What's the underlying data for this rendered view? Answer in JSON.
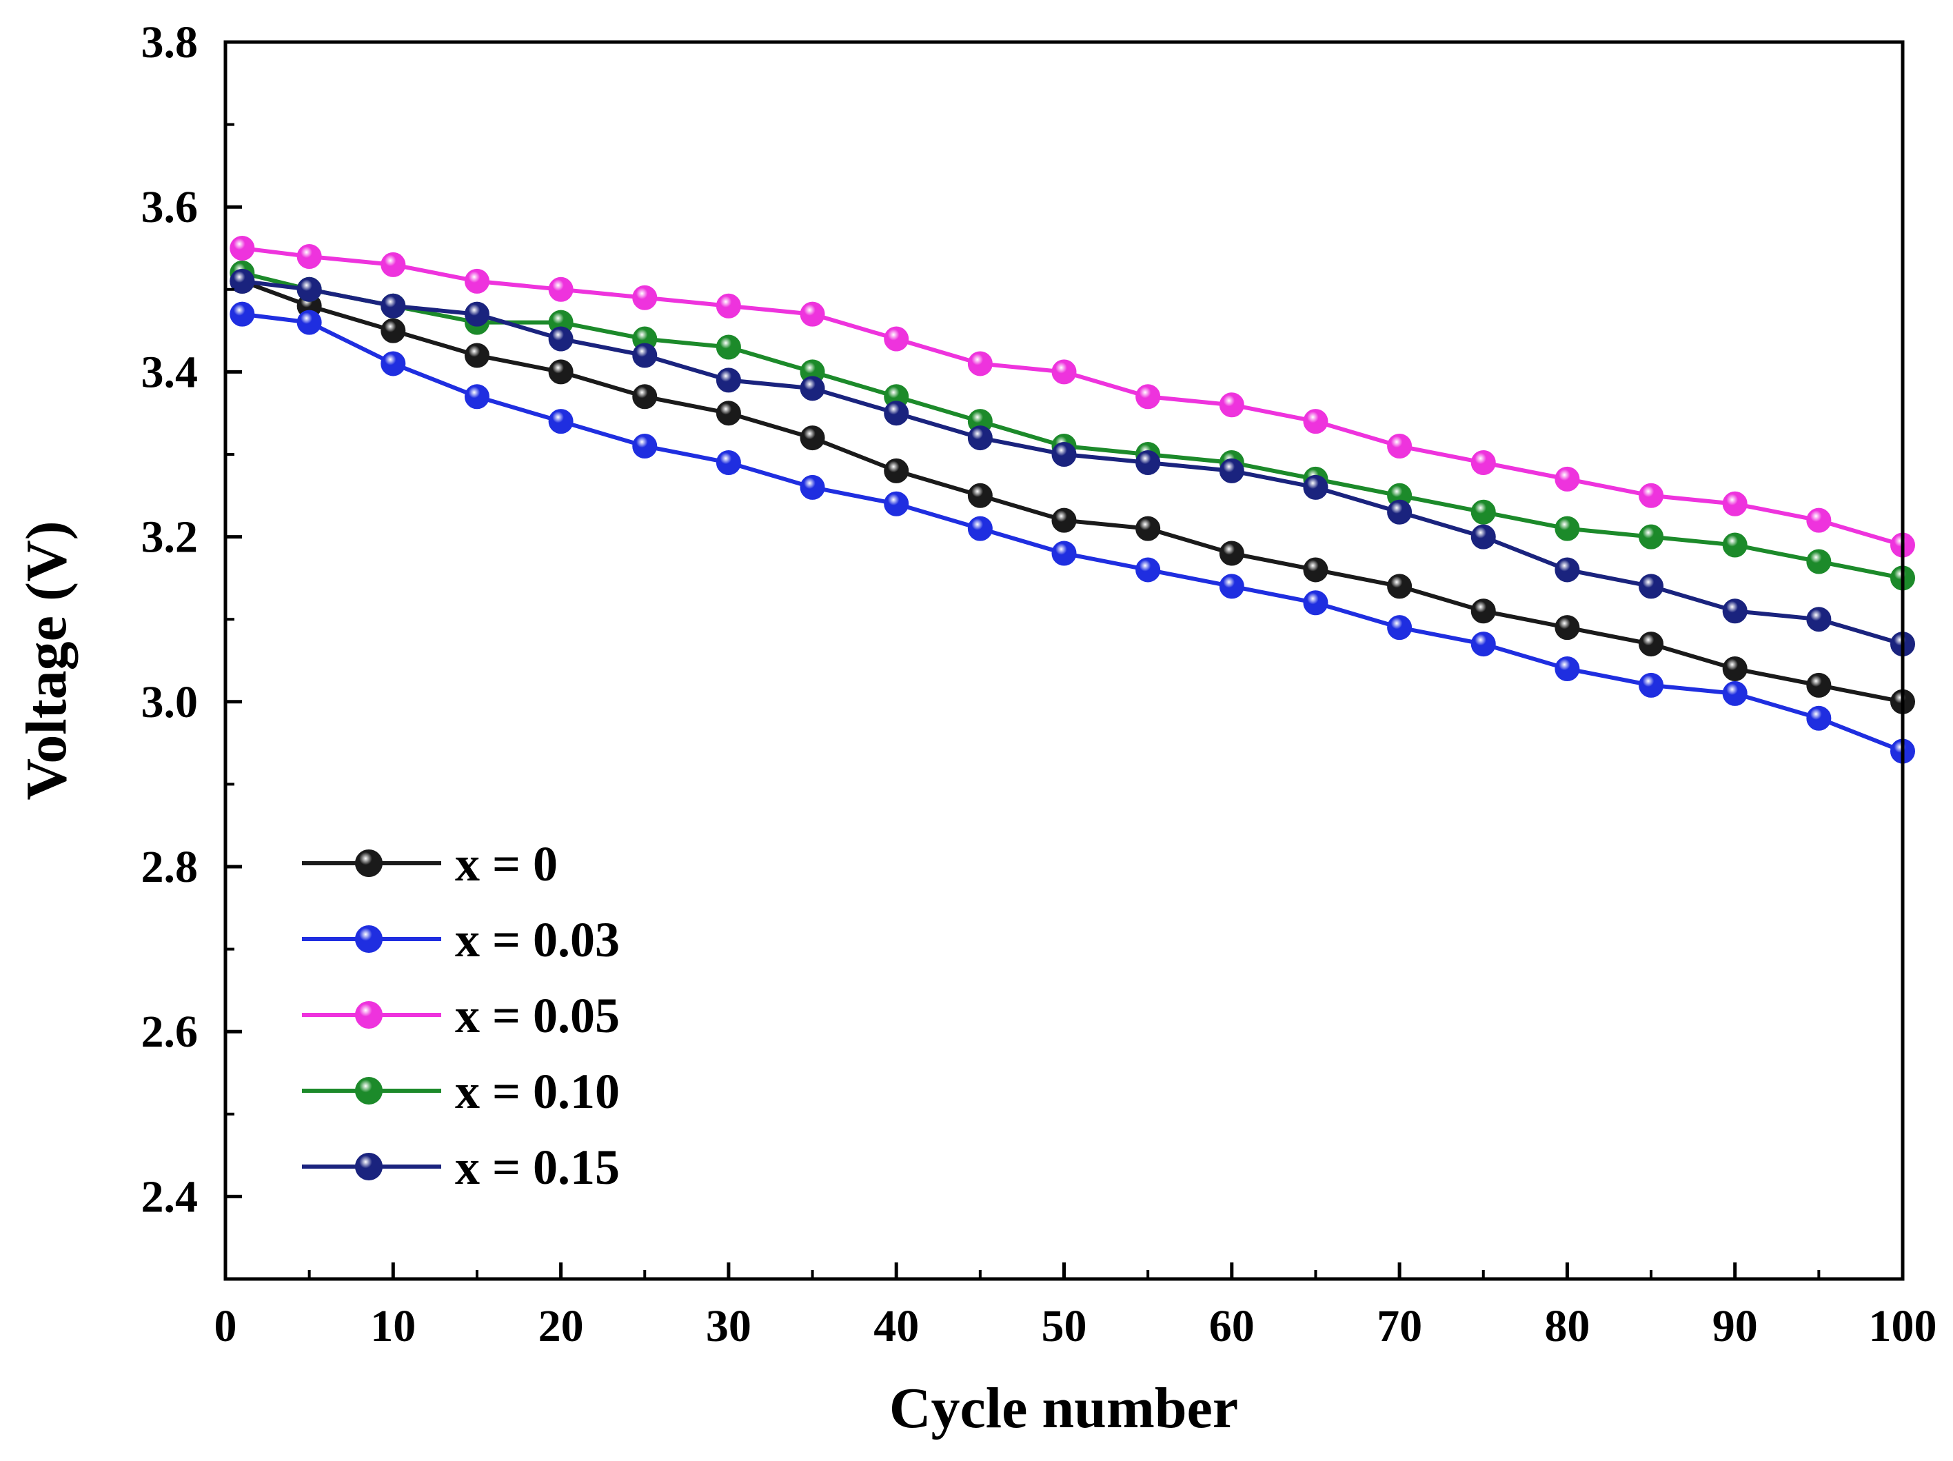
{
  "chart_data": {
    "type": "line",
    "title": "",
    "xlabel": "Cycle number",
    "ylabel": "Voltage (V)",
    "xlim": [
      0,
      100
    ],
    "ylim": [
      2.3,
      3.8
    ],
    "xticks": [
      0,
      10,
      20,
      30,
      40,
      50,
      60,
      70,
      80,
      90,
      100
    ],
    "xtick_labels": [
      "0",
      "10",
      "20",
      "30",
      "40",
      "50",
      "60",
      "70",
      "80",
      "90",
      "100"
    ],
    "yticks": [
      2.4,
      2.6,
      2.8,
      3.0,
      3.2,
      3.4,
      3.6,
      3.8
    ],
    "ytick_labels": [
      "2.4",
      "2.6",
      "2.8",
      "3.0",
      "3.2",
      "3.4",
      "3.6",
      "3.8"
    ],
    "grid": false,
    "legend_position": "bottom-left",
    "x": [
      1,
      5,
      10,
      15,
      20,
      25,
      30,
      35,
      40,
      45,
      50,
      55,
      60,
      65,
      70,
      75,
      80,
      85,
      90,
      95,
      100
    ],
    "series": [
      {
        "name": "x = 0",
        "color": "#1a1a1a",
        "values": [
          3.51,
          3.48,
          3.45,
          3.42,
          3.4,
          3.37,
          3.35,
          3.32,
          3.28,
          3.25,
          3.22,
          3.21,
          3.18,
          3.16,
          3.14,
          3.11,
          3.09,
          3.07,
          3.04,
          3.02,
          3.0
        ]
      },
      {
        "name": "x = 0.03",
        "color": "#1f2ee0",
        "values": [
          3.47,
          3.46,
          3.41,
          3.37,
          3.34,
          3.31,
          3.29,
          3.26,
          3.24,
          3.21,
          3.18,
          3.16,
          3.14,
          3.12,
          3.09,
          3.07,
          3.04,
          3.02,
          3.01,
          2.98,
          2.94
        ]
      },
      {
        "name": "x = 0.05",
        "color": "#ee33dd",
        "values": [
          3.55,
          3.54,
          3.53,
          3.51,
          3.5,
          3.49,
          3.48,
          3.47,
          3.44,
          3.41,
          3.4,
          3.37,
          3.36,
          3.34,
          3.31,
          3.29,
          3.27,
          3.25,
          3.24,
          3.22,
          3.19
        ]
      },
      {
        "name": "x = 0.10",
        "color": "#1c8a2a",
        "values": [
          3.52,
          3.5,
          3.48,
          3.46,
          3.46,
          3.44,
          3.43,
          3.4,
          3.37,
          3.34,
          3.31,
          3.3,
          3.29,
          3.27,
          3.25,
          3.23,
          3.21,
          3.2,
          3.19,
          3.17,
          3.15
        ]
      },
      {
        "name": "x = 0.15",
        "color": "#1a237e",
        "values": [
          3.51,
          3.5,
          3.48,
          3.47,
          3.44,
          3.42,
          3.39,
          3.38,
          3.35,
          3.32,
          3.3,
          3.29,
          3.28,
          3.26,
          3.23,
          3.2,
          3.16,
          3.14,
          3.11,
          3.1,
          3.07
        ]
      }
    ]
  }
}
